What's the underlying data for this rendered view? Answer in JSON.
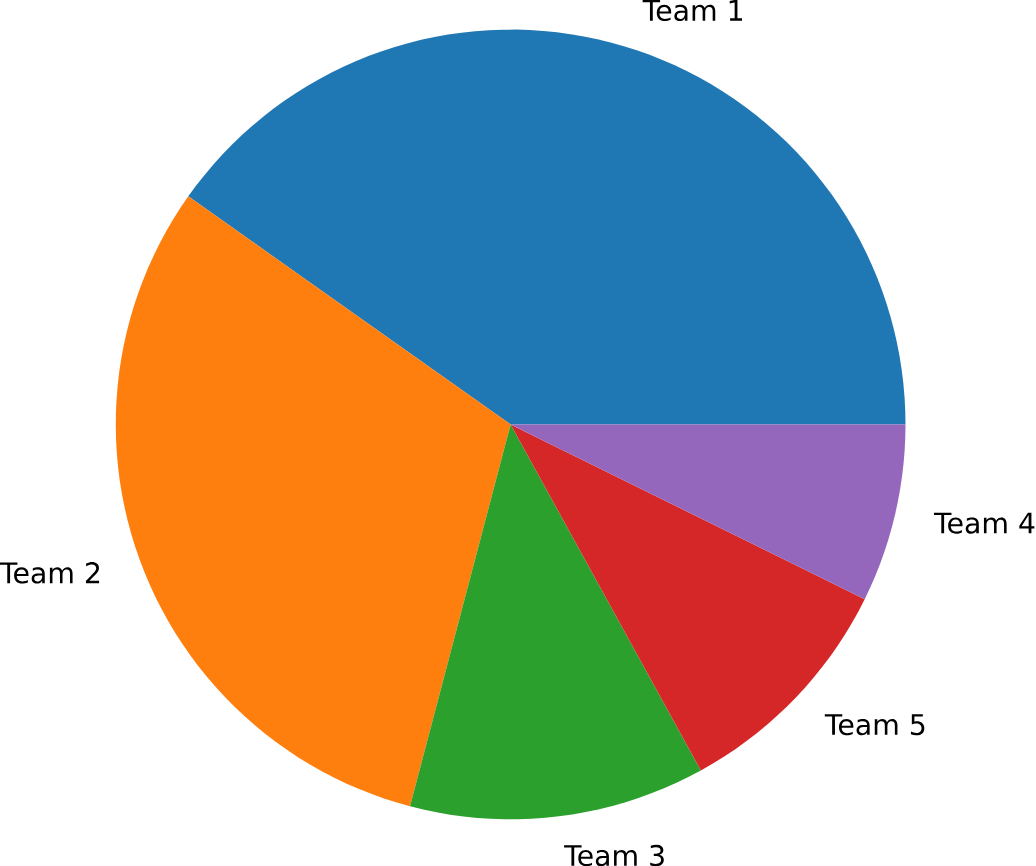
{
  "chart_data": {
    "type": "pie",
    "categories": [
      "Team 1",
      "Team 2",
      "Team 3",
      "Team 5",
      "Team 4"
    ],
    "values": [
      40.2,
      30.7,
      12.1,
      9.7,
      7.3
    ],
    "colors": [
      "#1f77b4",
      "#ff7f0e",
      "#2ca02c",
      "#d62728",
      "#9467bd"
    ]
  }
}
